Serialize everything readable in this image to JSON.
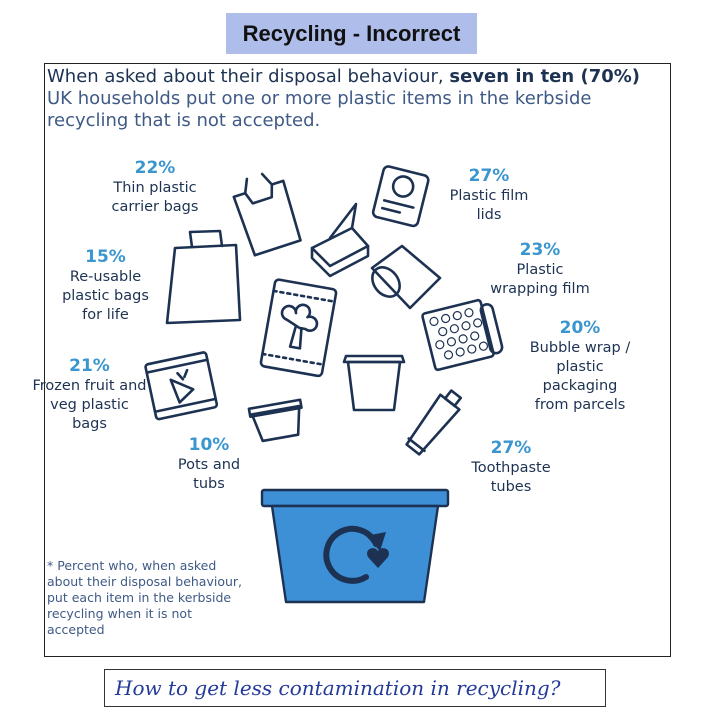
{
  "title": "Recycling - Incorrect",
  "headline": {
    "part1": "When asked about their disposal behaviour, ",
    "bold": "seven in ten (70%)",
    "part2": "UK households put one or more plastic items in the kerbside recycling that is not accepted."
  },
  "items": [
    {
      "pct": "22%",
      "label": "Thin plastic carrier bags",
      "icon": "carrier-bag-icon"
    },
    {
      "pct": "15%",
      "label": "Re-usable plastic bags for life",
      "icon": "bag-for-life-icon"
    },
    {
      "pct": "21%",
      "label": "Frozen fruit and veg plastic bags",
      "icon": "frozen-veg-bag-icon"
    },
    {
      "pct": "10%",
      "label": "Pots and tubs",
      "icon": "yoghurt-pot-icon"
    },
    {
      "pct": "27%",
      "label": "Plastic film lids",
      "icon": "film-lid-tray-icon"
    },
    {
      "pct": "23%",
      "label": "Plastic wrapping film",
      "icon": "wrapping-film-roll-icon"
    },
    {
      "pct": "20%",
      "label": "Bubble wrap / plastic packaging from parcels",
      "icon": "bubble-wrap-icon"
    },
    {
      "pct": "27%",
      "label": "Toothpaste tubes",
      "icon": "toothpaste-tube-icon"
    }
  ],
  "footnote": "* Percent who, when asked about their disposal behaviour, put each item in the kerbside recycling when it is not accepted",
  "question": "How to get less contamination in recycling?",
  "colors": {
    "accent": "#3a96cf",
    "navy": "#1d3252",
    "title_bg": "#aebdea",
    "bin": "#3d8fd6"
  }
}
